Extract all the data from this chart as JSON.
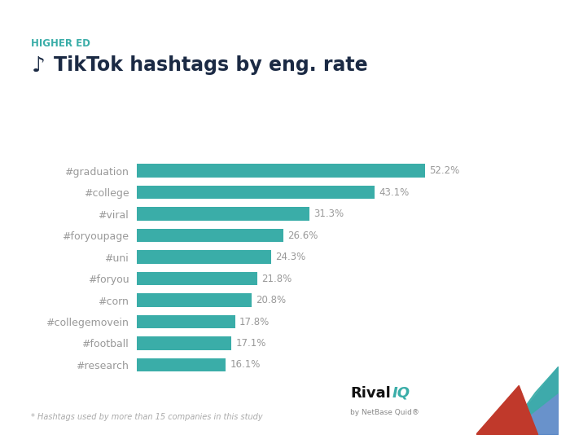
{
  "title": "TikTok hashtags by eng. rate",
  "subtitle": "HIGHER ED",
  "categories": [
    "#graduation",
    "#college",
    "#viral",
    "#foryoupage",
    "#uni",
    "#foryou",
    "#corn",
    "#collegemovein",
    "#football",
    "#research"
  ],
  "values": [
    52.2,
    43.1,
    31.3,
    26.6,
    24.3,
    21.8,
    20.8,
    17.8,
    17.1,
    16.1
  ],
  "labels": [
    "52.2%",
    "43.1%",
    "31.3%",
    "26.6%",
    "24.3%",
    "21.8%",
    "20.8%",
    "17.8%",
    "17.1%",
    "16.1%"
  ],
  "bar_color": "#3aada8",
  "background_color": "#ffffff",
  "title_color": "#1b2a44",
  "subtitle_color": "#3aada8",
  "label_color": "#999999",
  "footnote": "* Hashtags used by more than 15 companies in this study",
  "footnote_color": "#aaaaaa",
  "rival_color_bold": "#111111",
  "rival_color_teal": "#3aada8",
  "netbase_color": "#888888",
  "top_bar_color": "#3aada8",
  "logo_blue": "#4f7fc2",
  "logo_red": "#c0392b",
  "logo_teal": "#3aada8",
  "xlim": [
    0,
    62
  ]
}
